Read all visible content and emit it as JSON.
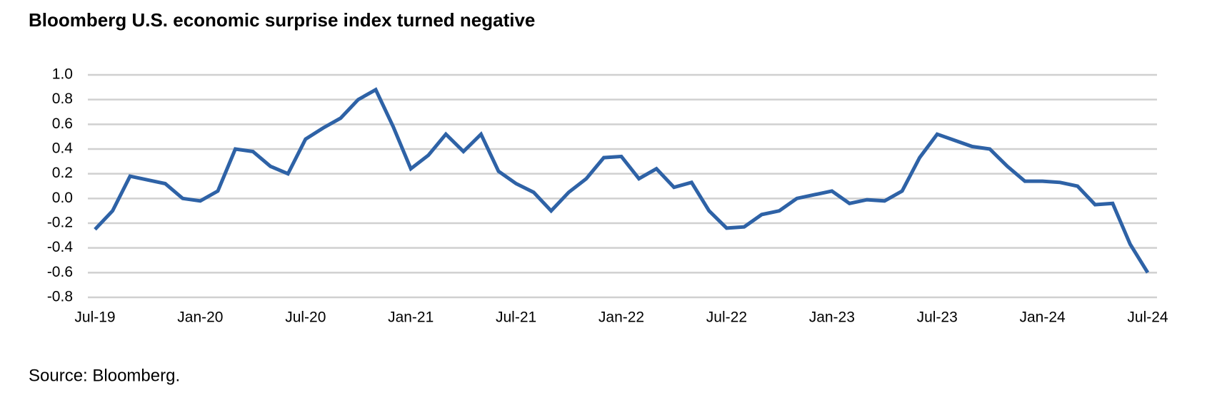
{
  "chart_data": {
    "type": "line",
    "title": "Bloomberg U.S. economic surprise index turned negative",
    "source": "Source: Bloomberg.",
    "color": "#2e62a6",
    "categories": [
      "Jul-19",
      null,
      null,
      null,
      null,
      null,
      "Jan-20",
      null,
      null,
      null,
      null,
      null,
      "Jul-20",
      null,
      null,
      null,
      null,
      null,
      "Jan-21",
      null,
      null,
      null,
      null,
      null,
      "Jul-21",
      null,
      null,
      null,
      null,
      null,
      "Jan-22",
      null,
      null,
      null,
      null,
      null,
      "Jul-22",
      null,
      null,
      null,
      null,
      null,
      "Jan-23",
      null,
      null,
      null,
      null,
      null,
      "Jul-23",
      null,
      null,
      null,
      null,
      null,
      "Jan-24",
      null,
      null,
      null,
      null,
      null,
      "Jul-24"
    ],
    "values": [
      -0.25,
      -0.1,
      0.18,
      0.15,
      0.12,
      0.0,
      -0.02,
      0.06,
      0.4,
      0.38,
      0.26,
      0.2,
      0.48,
      0.57,
      0.65,
      0.8,
      0.88,
      0.58,
      0.24,
      0.35,
      0.52,
      0.38,
      0.52,
      0.22,
      0.12,
      0.05,
      -0.1,
      0.05,
      0.16,
      0.33,
      0.34,
      0.16,
      0.24,
      0.09,
      0.13,
      -0.1,
      -0.24,
      -0.23,
      -0.13,
      -0.1,
      0.0,
      0.03,
      0.06,
      -0.04,
      -0.01,
      -0.02,
      0.06,
      0.33,
      0.52,
      0.47,
      0.42,
      0.4,
      0.26,
      0.14,
      0.14,
      0.13,
      0.1,
      -0.05,
      -0.04,
      -0.37,
      -0.6
    ],
    "ylim": [
      -0.8,
      1.0
    ],
    "yticks": [
      {
        "value": 1.0,
        "label": "1.0"
      },
      0.8,
      0.6,
      0.4,
      0.2,
      {
        "value": 0,
        "label": "0.0"
      },
      -0.2,
      -0.4,
      -0.6,
      -0.8
    ],
    "grid": true
  }
}
